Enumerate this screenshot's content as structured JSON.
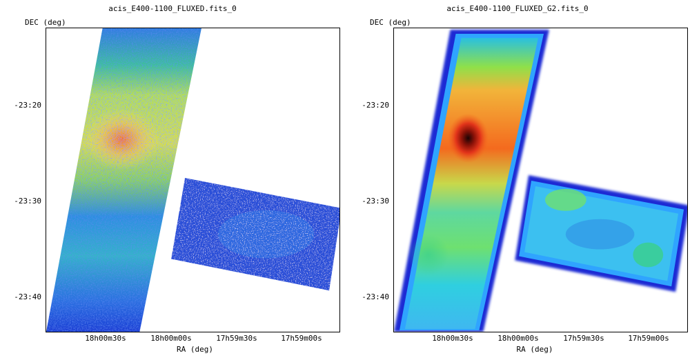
{
  "panels": [
    {
      "title": "acis_E400-1100_FLUXED.fits_0",
      "ylabel": "DEC (deg)",
      "xlabel": "RA (deg)",
      "yticks": [
        "-23:20",
        "-23:30",
        "-23:40"
      ],
      "xticks": [
        "18h00m30s",
        "18h00m00s",
        "17h59m30s",
        "17h59m00s"
      ],
      "style": "raw noisy counts map"
    },
    {
      "title": "acis_E400-1100_FLUXED_G2.fits_0",
      "ylabel": "DEC (deg)",
      "xlabel": "RA (deg)",
      "yticks": [
        "-23:20",
        "-23:30",
        "-23:40"
      ],
      "xticks": [
        "18h00m30s",
        "18h00m00s",
        "17h59m30s",
        "17h59m00s"
      ],
      "style": "gaussian smoothed map"
    }
  ],
  "colors": {
    "low": "#1a2bd4",
    "mid_low": "#2fa4ff",
    "mid": "#29c9b9",
    "mid_high": "#8fe04a",
    "high": "#f2e53a",
    "hot": "#f47a1e",
    "peak": "#7a0c08"
  }
}
